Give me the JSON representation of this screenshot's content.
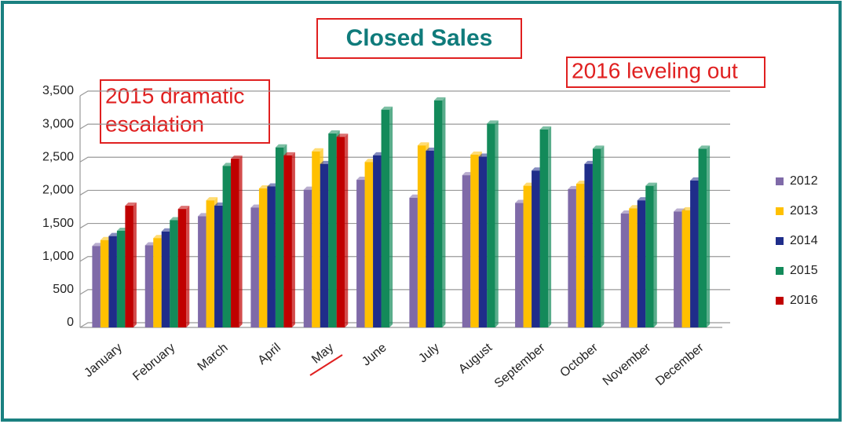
{
  "chart_data": {
    "type": "bar",
    "title": "Closed Sales",
    "annotations": [
      [
        "2015 dramatic",
        "escalation"
      ],
      [
        "2016 leveling out"
      ]
    ],
    "categories": [
      "January",
      "February",
      "March",
      "April",
      "May",
      "June",
      "July",
      "August",
      "September",
      "October",
      "November",
      "December"
    ],
    "series": [
      {
        "name": "2012",
        "color": "#7f6aa8",
        "values": [
          1230,
          1240,
          1680,
          1810,
          2080,
          2230,
          1960,
          2300,
          1880,
          2090,
          1720,
          1750
        ]
      },
      {
        "name": "2013",
        "color": "#ffc000",
        "values": [
          1320,
          1350,
          1920,
          2100,
          2660,
          2500,
          2750,
          2610,
          2140,
          2170,
          1800,
          1770
        ]
      },
      {
        "name": "2014",
        "color": "#1f2d8a",
        "values": [
          1380,
          1450,
          1840,
          2130,
          2470,
          2600,
          2670,
          2580,
          2370,
          2470,
          1920,
          2220
        ]
      },
      {
        "name": "2015",
        "color": "#138a5a",
        "values": [
          1460,
          1620,
          2440,
          2720,
          2930,
          3290,
          3430,
          3080,
          2990,
          2700,
          2140,
          2700
        ]
      },
      {
        "name": "2016",
        "color": "#c00000",
        "values": [
          1840,
          1790,
          2550,
          2600,
          2880,
          null,
          null,
          null,
          null,
          null,
          null,
          null
        ]
      }
    ],
    "ylim": [
      0,
      3500
    ],
    "yticks": [
      0,
      500,
      {
        "value": 1000,
        "label": "1,000"
      },
      {
        "value": 1500,
        "label": "1,500"
      },
      {
        "value": 2000,
        "label": "2,000"
      },
      {
        "value": 2500,
        "label": "2,500"
      },
      {
        "value": 3000,
        "label": "3,000"
      },
      {
        "value": 3500,
        "label": "3,500"
      }
    ],
    "grid": true
  }
}
